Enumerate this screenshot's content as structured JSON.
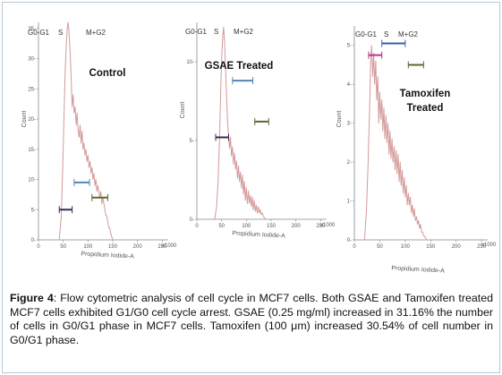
{
  "caption": {
    "label": "Figure 4",
    "text": ": Flow cytometric analysis of cell cycle in MCF7 cells. Both GSAE and Tamoxifen treated MCF7 cells exhibited G1/G0 cell cycle arrest. GSAE (0.25 mg/ml) increased in 31.16% the number of cells in G0/G1 phase in MCF7 cells. Tamoxifen (100 μm) increased 30.54% of cell number in G0/G1 phase."
  },
  "colors": {
    "histogram": "#d49a9a",
    "g0g1_marker": "#3a2a55",
    "s_marker": "#4f86b8",
    "g2m_marker": "#556b2f",
    "tamox_g0g1_marker": "#b03a8a",
    "tamox_s_marker": "#3b5fa8",
    "axis": "#888888"
  },
  "chart_data": [
    {
      "type": "area",
      "title": "Control",
      "xlabel": "Propidium Iodide-A",
      "x_multiplier": "x1000",
      "ylabel": "Count",
      "xlim": [
        0,
        262
      ],
      "ylim": [
        0,
        36
      ],
      "x_ticks": [
        0,
        50,
        100,
        150,
        200,
        250
      ],
      "y_ticks": [
        0,
        5,
        10,
        15,
        20,
        25,
        30,
        35
      ],
      "y_tick_labels": [
        "0-",
        "5-",
        "10-",
        "15-",
        "20-",
        "25-",
        "30-",
        "35-"
      ],
      "phase_labels": [
        "G0-G1",
        "S",
        "M+G2"
      ],
      "x": [
        42,
        46,
        49,
        52,
        54,
        56,
        58,
        60,
        62,
        64,
        66,
        68,
        70,
        72,
        74,
        76,
        78,
        80,
        82,
        84,
        86,
        88,
        90,
        92,
        94,
        96,
        98,
        100,
        102,
        104,
        106,
        108,
        110,
        112,
        114,
        116,
        118,
        120,
        122,
        124,
        126,
        128,
        130,
        132,
        134,
        136,
        138,
        140,
        142,
        144,
        146,
        150
      ],
      "y": [
        0,
        4,
        12,
        22,
        28,
        32,
        35,
        36,
        34,
        31,
        27,
        22,
        24,
        21,
        22,
        19,
        21,
        18,
        17,
        19,
        16,
        18,
        15,
        16,
        14,
        15,
        13,
        14,
        12,
        13,
        11,
        12,
        10,
        11,
        9,
        10,
        8,
        9,
        8,
        7,
        8,
        6,
        7,
        6,
        5,
        4,
        4,
        3,
        2,
        2,
        1,
        0
      ],
      "markers": [
        {
          "phase": "G0-G1",
          "from": 42,
          "to": 68,
          "y": 5,
          "color_key": "g0g1_marker"
        },
        {
          "phase": "S",
          "from": 72,
          "to": 103,
          "y": 9.5,
          "color_key": "s_marker"
        },
        {
          "phase": "M+G2",
          "from": 108,
          "to": 140,
          "y": 7,
          "color_key": "g2m_marker"
        }
      ]
    },
    {
      "type": "area",
      "title": "GSAE Treated",
      "xlabel": "Propidium Iodide-A",
      "x_multiplier": "x1000",
      "ylabel": "Count",
      "xlim": [
        0,
        262
      ],
      "ylim": [
        0,
        12.5
      ],
      "x_ticks": [
        0,
        50,
        100,
        150,
        200,
        250
      ],
      "y_ticks": [
        0,
        5,
        10
      ],
      "y_tick_labels": [
        "0-",
        "5-",
        "10-"
      ],
      "phase_labels": [
        "G0-G1",
        "S",
        "M+G2"
      ],
      "x": [
        36,
        40,
        43,
        46,
        48,
        50,
        52,
        54,
        56,
        58,
        60,
        62,
        64,
        66,
        68,
        70,
        72,
        74,
        76,
        78,
        80,
        82,
        84,
        86,
        88,
        90,
        92,
        94,
        96,
        98,
        100,
        102,
        104,
        106,
        108,
        110,
        112,
        114,
        116,
        118,
        120,
        122,
        124,
        126,
        128,
        130,
        132,
        134,
        136,
        140
      ],
      "y": [
        0,
        0.8,
        2.5,
        5.5,
        8,
        10.2,
        11.5,
        12.2,
        11.2,
        9.5,
        7.8,
        6.2,
        5.4,
        4.5,
        5.2,
        4.0,
        4.6,
        3.5,
        4.2,
        3.2,
        3.7,
        2.6,
        3.4,
        2.4,
        3.0,
        2.0,
        2.8,
        1.6,
        2.4,
        1.2,
        2.0,
        1.0,
        1.8,
        1.0,
        1.5,
        0.8,
        1.4,
        0.6,
        1.2,
        0.5,
        0.9,
        0.4,
        0.8,
        0.4,
        0.6,
        0.3,
        0.4,
        0.2,
        0.1,
        0
      ],
      "markers": [
        {
          "phase": "G0-G1",
          "from": 38,
          "to": 64,
          "y": 5.2,
          "color_key": "g0g1_marker"
        },
        {
          "phase": "S",
          "from": 72,
          "to": 113,
          "y": 8.8,
          "color_key": "s_marker"
        },
        {
          "phase": "M+G2",
          "from": 117,
          "to": 145,
          "y": 6.2,
          "color_key": "g2m_marker"
        }
      ]
    },
    {
      "type": "area",
      "title": "Tamoxifen Treated",
      "xlabel": "Propidium Iodide-A",
      "x_multiplier": "x1000",
      "ylabel": "Count",
      "xlim": [
        0,
        262
      ],
      "ylim": [
        0,
        5.5
      ],
      "x_ticks": [
        0,
        50,
        100,
        150,
        200,
        250
      ],
      "y_ticks": [
        0,
        1,
        2,
        3,
        4,
        5
      ],
      "y_tick_labels": [
        "0-",
        "1-",
        "2-",
        "3-",
        "4-",
        "5-"
      ],
      "phase_labels": [
        "G0-G1",
        "S",
        "M+G2"
      ],
      "x": [
        20,
        24,
        27,
        30,
        32,
        34,
        36,
        38,
        40,
        42,
        44,
        46,
        48,
        50,
        52,
        54,
        56,
        58,
        60,
        62,
        64,
        66,
        68,
        70,
        72,
        74,
        76,
        78,
        80,
        82,
        84,
        86,
        88,
        90,
        92,
        94,
        96,
        98,
        100,
        102,
        104,
        106,
        108,
        110,
        112,
        114,
        116,
        118,
        120,
        122,
        124,
        126,
        128,
        130,
        132,
        134,
        136,
        138,
        142
      ],
      "y": [
        0,
        0.8,
        2.0,
        3.4,
        4.6,
        5.0,
        4.2,
        4.8,
        4.0,
        4.6,
        3.6,
        4.2,
        3.0,
        3.8,
        3.1,
        3.6,
        2.8,
        3.4,
        2.6,
        3.2,
        2.5,
        3.0,
        2.2,
        2.8,
        2.1,
        2.6,
        2.0,
        2.4,
        1.8,
        2.3,
        1.7,
        2.2,
        1.5,
        2.0,
        1.4,
        1.8,
        1.2,
        1.6,
        1.1,
        1.4,
        0.9,
        1.2,
        0.9,
        1.1,
        0.7,
        0.9,
        0.6,
        0.8,
        0.5,
        0.6,
        0.4,
        0.5,
        0.3,
        0.4,
        0.2,
        0.2,
        0.1,
        0.1,
        0
      ],
      "markers": [
        {
          "phase": "G0-G1",
          "from": 28,
          "to": 54,
          "y": 4.75,
          "color_key": "tamox_g0g1_marker"
        },
        {
          "phase": "S",
          "from": 54,
          "to": 100,
          "y": 5.05,
          "color_key": "tamox_s_marker"
        },
        {
          "phase": "M+G2",
          "from": 106,
          "to": 136,
          "y": 4.5,
          "color_key": "g2m_marker"
        }
      ]
    }
  ]
}
